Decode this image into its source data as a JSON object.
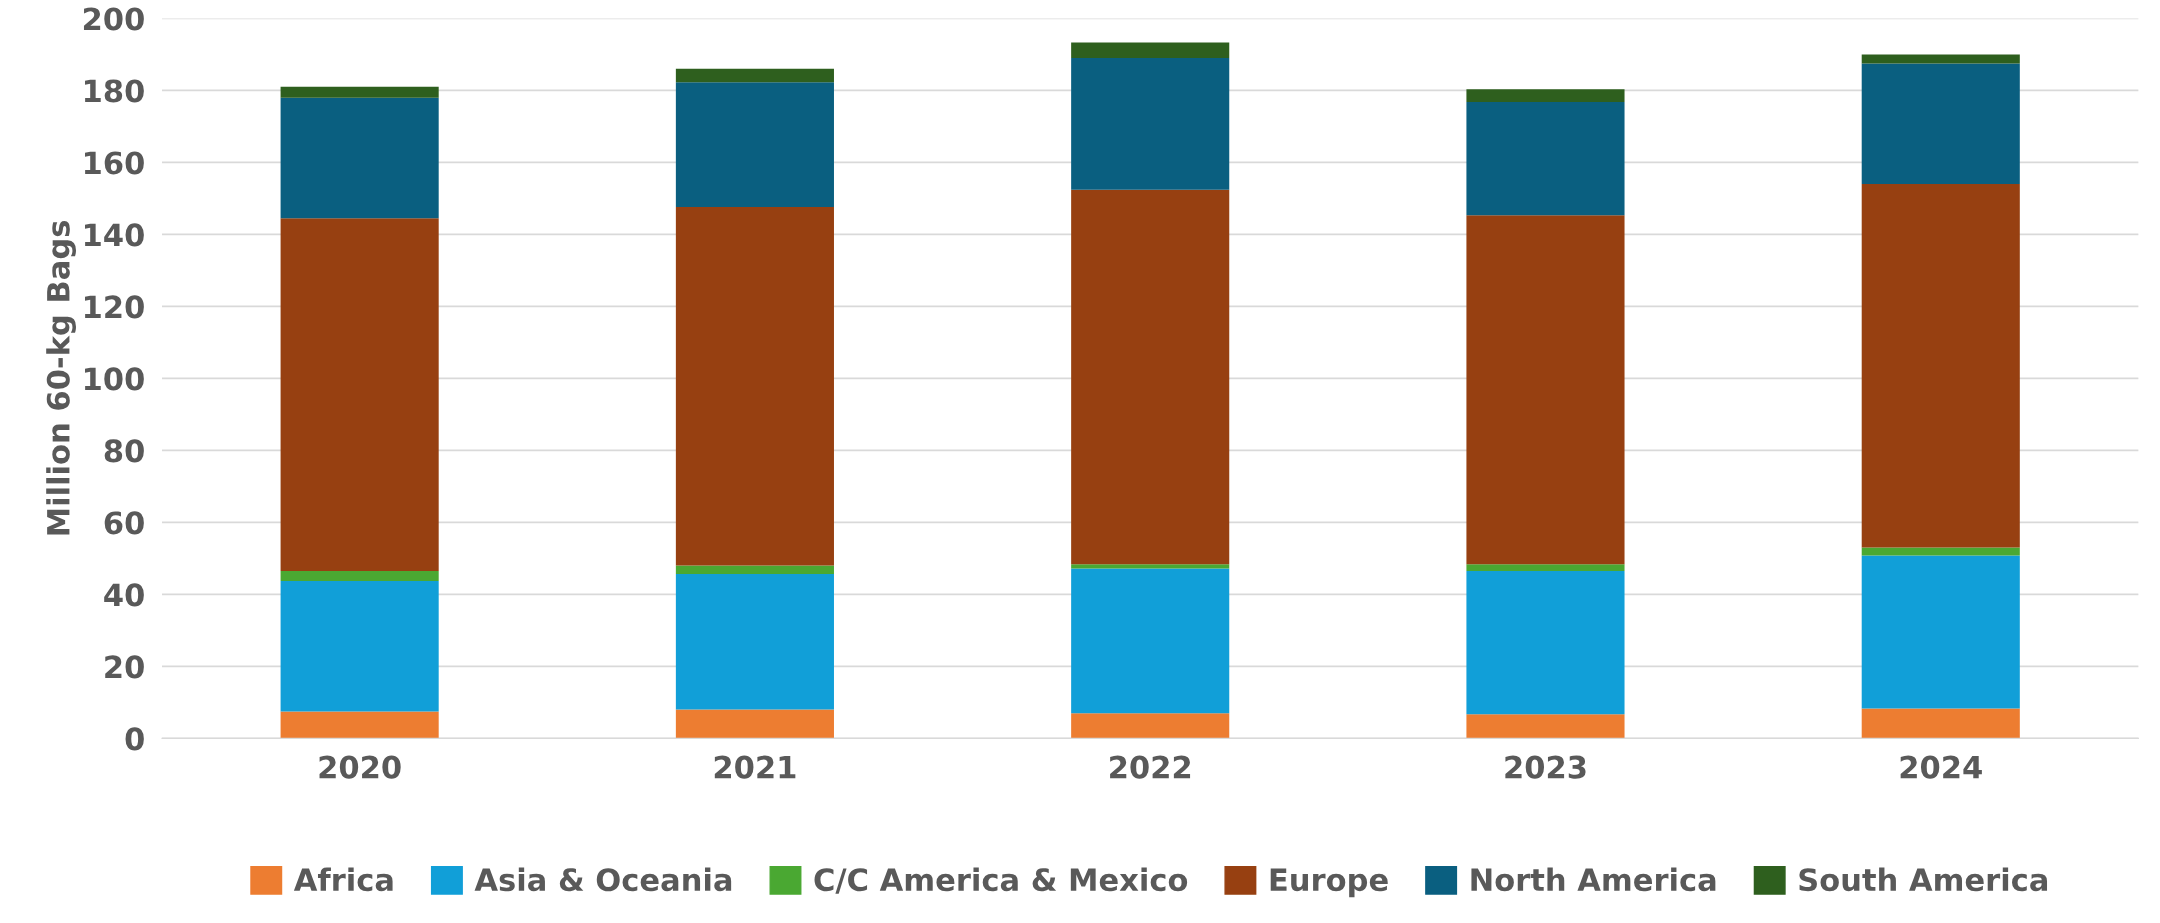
{
  "chart_data": {
    "type": "bar",
    "stacked": true,
    "ylabel": "Million 60-kg Bags",
    "categories": [
      "2020",
      "2021",
      "2022",
      "2023",
      "2024"
    ],
    "ylim": [
      0,
      200
    ],
    "yticks": [
      0,
      20,
      40,
      60,
      80,
      100,
      120,
      140,
      160,
      180,
      200
    ],
    "grid": "y",
    "legend": "bottom",
    "series": [
      {
        "name": "Africa",
        "color": "#ed7d31",
        "values": [
          7.5,
          8,
          7,
          6.7,
          8.3
        ]
      },
      {
        "name": "Asia & Oceania",
        "color": "#119fd8",
        "values": [
          36.2,
          37.7,
          40.2,
          39.8,
          42.5
        ]
      },
      {
        "name": "C/C America & Mexico",
        "color": "#4aa832",
        "values": [
          2.8,
          2.3,
          1.2,
          1.9,
          2.2
        ]
      },
      {
        "name": "Europe",
        "color": "#974011",
        "values": [
          98,
          99.6,
          104,
          96.9,
          101
        ]
      },
      {
        "name": "North America",
        "color": "#0a5f80",
        "values": [
          33.5,
          34.7,
          36.6,
          31.5,
          33.5
        ]
      },
      {
        "name": "South America",
        "color": "#2e5f1e",
        "values": [
          3,
          3.7,
          4.3,
          3.5,
          2.5
        ]
      }
    ]
  }
}
